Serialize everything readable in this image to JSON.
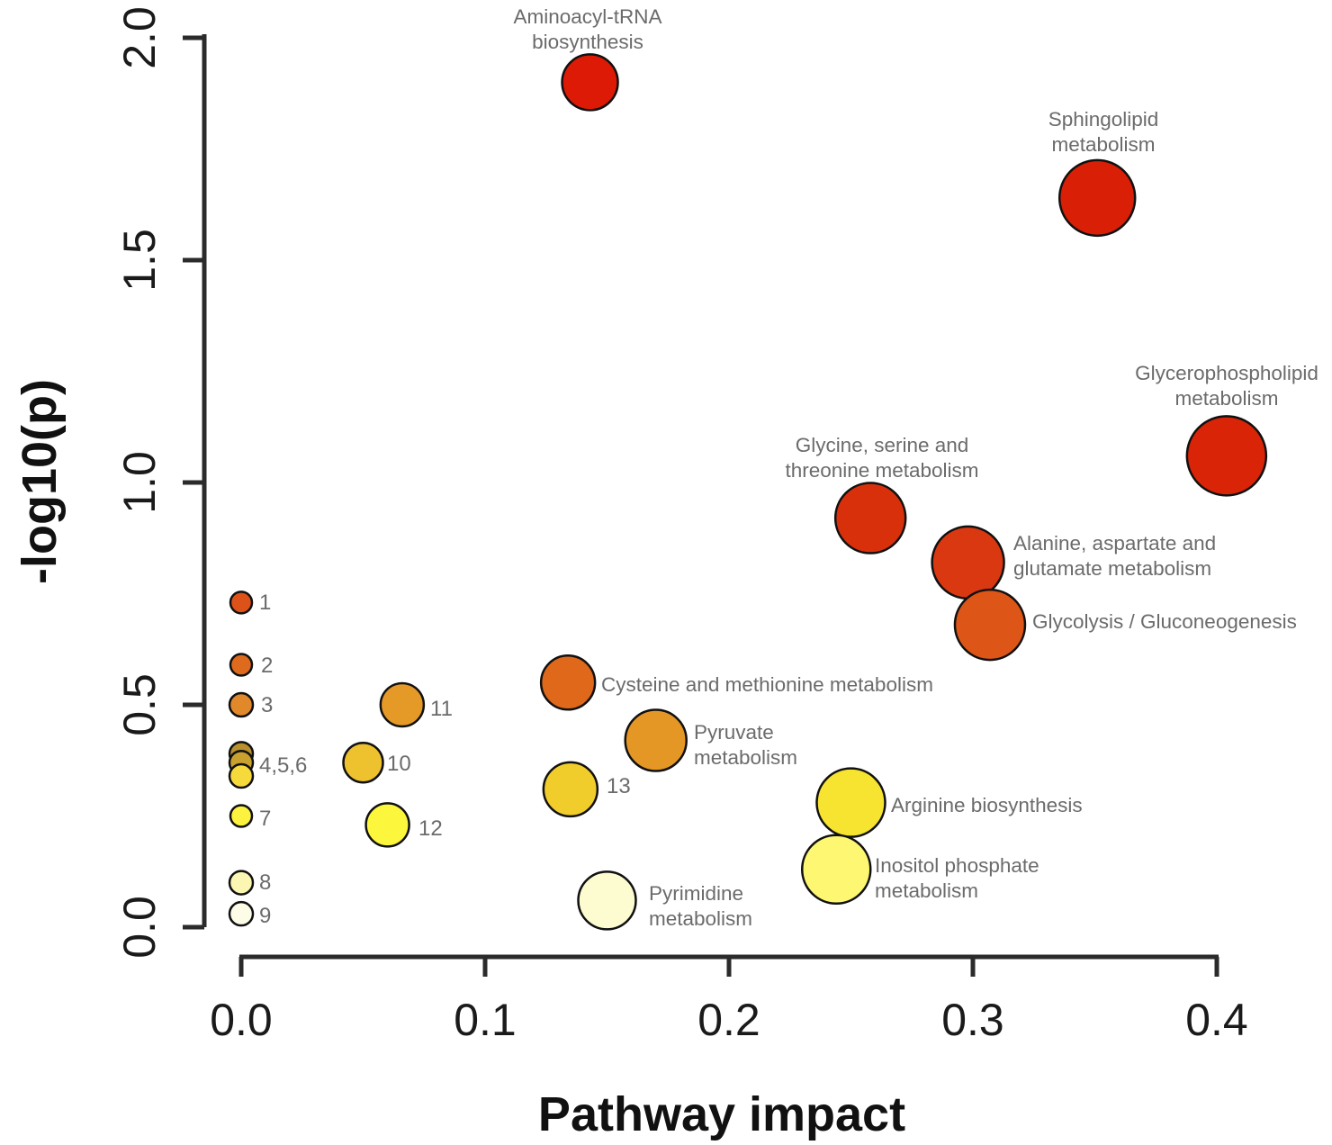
{
  "chart_data": {
    "type": "scatter",
    "title": "",
    "xlabel": "Pathway impact",
    "ylabel": "-log10(p)",
    "xlim": [
      0.0,
      0.4
    ],
    "ylim": [
      0.0,
      2.0
    ],
    "xticks": [
      "0.0",
      "0.1",
      "0.2",
      "0.3",
      "0.4"
    ],
    "yticks": [
      "0.0",
      "0.5",
      "1.0",
      "1.5",
      "2.0"
    ],
    "grid": false,
    "legend": "none",
    "points": [
      {
        "name": "Aminoacyl-tRNA biosynthesis",
        "label": [
          "Aminoacyl-tRNA",
          "biosynthesis"
        ],
        "x": 0.143,
        "y": 1.9,
        "color": "#dc1a05"
      },
      {
        "name": "Sphingolipid metabolism",
        "label": [
          "Sphingolipid",
          "metabolism"
        ],
        "x": 0.351,
        "y": 1.64,
        "color": "#d91f06"
      },
      {
        "name": "Glycerophospholipid metabolism",
        "label": [
          "Glycerophospholipid",
          "metabolism"
        ],
        "x": 0.404,
        "y": 1.06,
        "color": "#d92407"
      },
      {
        "name": "Glycine, serine and threonine metabolism",
        "label": [
          "Glycine, serine and",
          "threonine metabolism"
        ],
        "x": 0.258,
        "y": 0.92,
        "color": "#d9300c"
      },
      {
        "name": "Alanine, aspartate and glutamate metabolism",
        "label": [
          "Alanine, aspartate and",
          "glutamate metabolism"
        ],
        "x": 0.298,
        "y": 0.82,
        "color": "#da3810"
      },
      {
        "name": "Glycolysis / Gluconeogenesis",
        "label": [
          "Glycolysis / Gluconeogenesis"
        ],
        "x": 0.307,
        "y": 0.68,
        "color": "#dd5517"
      },
      {
        "name": "Cysteine and methionine metabolism",
        "label": [
          "Cysteine and methionine metabolism"
        ],
        "x": 0.134,
        "y": 0.55,
        "color": "#df681b"
      },
      {
        "name": "Pyruvate metabolism",
        "label": [
          "Pyruvate",
          "metabolism"
        ],
        "x": 0.17,
        "y": 0.42,
        "color": "#e59726"
      },
      {
        "name": "13",
        "label": [
          "13"
        ],
        "x": 0.135,
        "y": 0.31,
        "color": "#f1cd2c"
      },
      {
        "name": "Arginine biosynthesis",
        "label": [
          "Arginine biosynthesis"
        ],
        "x": 0.25,
        "y": 0.28,
        "color": "#f7e431"
      },
      {
        "name": "Inositol phosphate metabolism",
        "label": [
          "Inositol phosphate",
          "metabolism"
        ],
        "x": 0.244,
        "y": 0.13,
        "color": "#fdf771"
      },
      {
        "name": "Pyrimidine metabolism",
        "label": [
          "Pyrimidine",
          "metabolism"
        ],
        "x": 0.15,
        "y": 0.06,
        "color": "#fdfbd0"
      },
      {
        "name": "11",
        "label": [
          "11"
        ],
        "x": 0.066,
        "y": 0.5,
        "color": "#e59a28"
      },
      {
        "name": "10",
        "label": [
          "10"
        ],
        "x": 0.05,
        "y": 0.37,
        "color": "#eec22f"
      },
      {
        "name": "12",
        "label": [
          "12"
        ],
        "x": 0.06,
        "y": 0.23,
        "color": "#fcf63d"
      },
      {
        "name": "1",
        "label": [
          "1"
        ],
        "x": 0.0,
        "y": 0.73,
        "color": "#dc5219"
      },
      {
        "name": "2",
        "label": [
          "2"
        ],
        "x": 0.0,
        "y": 0.59,
        "color": "#de6a1e"
      },
      {
        "name": "3",
        "label": [
          "3"
        ],
        "x": 0.0,
        "y": 0.5,
        "color": "#e1892a"
      },
      {
        "name": "4",
        "label": [],
        "x": 0.0,
        "y": 0.39,
        "color": "#b8902e"
      },
      {
        "name": "5",
        "label": [
          "4,5,6"
        ],
        "x": 0.0,
        "y": 0.37,
        "color": "#c9a12f"
      },
      {
        "name": "6",
        "label": [],
        "x": 0.0,
        "y": 0.34,
        "color": "#f6d93a"
      },
      {
        "name": "7",
        "label": [
          "7"
        ],
        "x": 0.0,
        "y": 0.25,
        "color": "#fcf23f"
      },
      {
        "name": "8",
        "label": [
          "8"
        ],
        "x": 0.0,
        "y": 0.1,
        "color": "#fbf6b2"
      },
      {
        "name": "9",
        "label": [
          "9"
        ],
        "x": 0.0,
        "y": 0.03,
        "color": "#fdfce6"
      }
    ]
  }
}
